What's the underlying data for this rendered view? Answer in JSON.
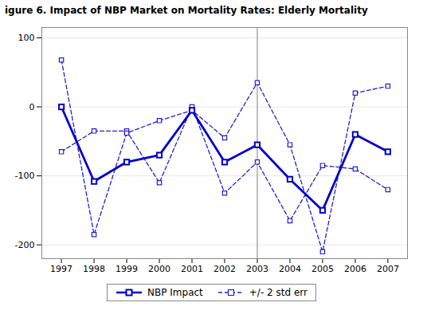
{
  "chart_data": {
    "type": "line",
    "title": "igure 6. Impact of NBP Market on Mortality Rates: Elderly Mortality",
    "x": [
      1997,
      1998,
      1999,
      2000,
      2001,
      2002,
      2003,
      2004,
      2005,
      2006,
      2007
    ],
    "series": [
      {
        "name": "NBP Impact",
        "color": "#0000CC",
        "line_style": "solid",
        "marker": "square",
        "values": [
          0,
          -108,
          -80,
          -70,
          -5,
          -80,
          -55,
          -105,
          -150,
          -40,
          -65
        ]
      },
      {
        "name": "+/- 2 std err",
        "color": "#2222CC",
        "line_style": "dashed",
        "marker": "square",
        "values": [
          68,
          -185,
          -38,
          -20,
          -5,
          -45,
          35,
          -55,
          -210,
          20,
          30
        ]
      },
      {
        "name": "+/- 2 std err",
        "color": "#2222CC",
        "line_style": "dashed",
        "marker": "square",
        "values": [
          -65,
          -35,
          -35,
          -110,
          0,
          -125,
          -80,
          -165,
          -85,
          -90,
          -120
        ]
      }
    ],
    "xlim": [
      1996.4,
      2007.6
    ],
    "xticks": [
      1997,
      1998,
      1999,
      2000,
      2001,
      2002,
      2003,
      2004,
      2005,
      2006,
      2007
    ],
    "ylim": [
      -220,
      115
    ],
    "yticks": [
      -200,
      -100,
      0,
      100
    ],
    "vlines": [
      {
        "x": 2003,
        "color": "gray"
      }
    ],
    "grid": "y",
    "legend": "bottom"
  }
}
